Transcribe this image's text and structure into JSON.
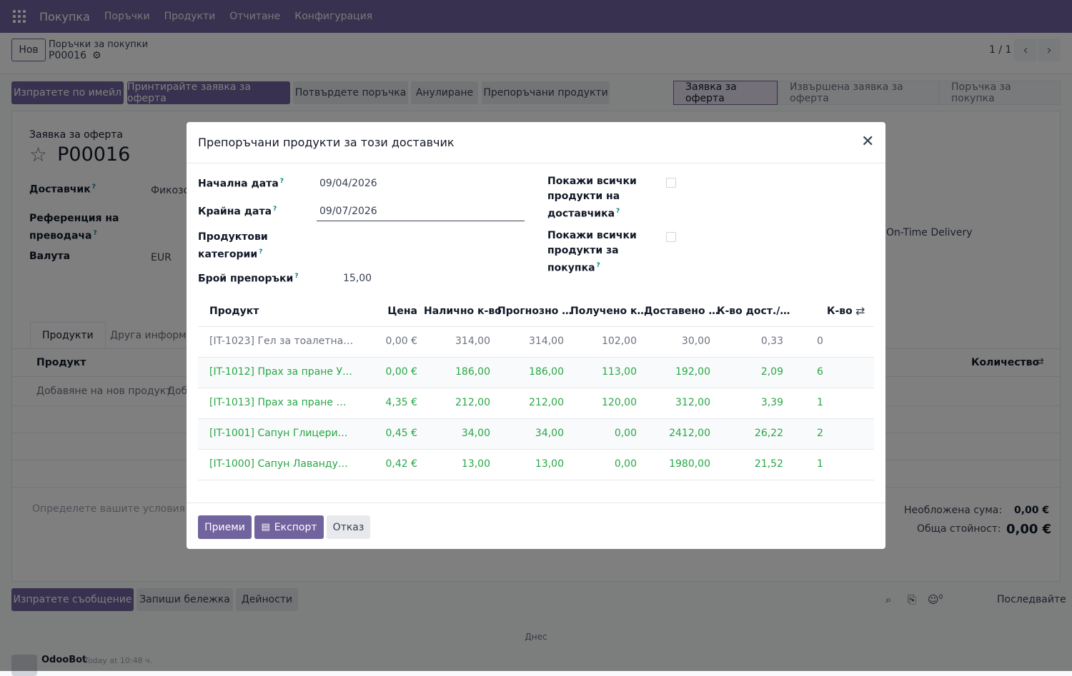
{
  "topnav": {
    "app_name": "Покупка",
    "items": [
      "Поръчки",
      "Продукти",
      "Отчитане",
      "Конфигурация"
    ]
  },
  "control_panel": {
    "new_label": "Нов",
    "breadcrumb_parent": "Поръчки за покупки",
    "breadcrumb_current": "P00016",
    "pager": "1 / 1"
  },
  "actions": {
    "send_email": "Изпратете по имейл",
    "print_rfq": "Принтирайте заявка за оферта",
    "confirm_order": "Потвърдете поръчка",
    "cancel": "Анулиране",
    "recommended": "Препоръчани продукти"
  },
  "statusbar": [
    "Заявка за оферта",
    "Извършена заявка за оферта",
    "Поръчка за покупка"
  ],
  "form": {
    "doc_type": "Заявка за оферта",
    "doc_number": "P00016",
    "vendor_label": "Доставчик",
    "vendor_value": "Фикозо",
    "vendor_ref_label_1": "Референция на",
    "vendor_ref_label_2": "преводача",
    "currency_label": "Валута",
    "currency_value": "EUR",
    "ontime_label": "On-Time Delivery",
    "tab_products": "Продукти",
    "tab_other": "Друга информац",
    "col_product": "Продукт",
    "col_quantity": "Количество",
    "add_product": "Добавяне на нов продукт",
    "add_other": "Доба",
    "terms_placeholder": "Определете вашите условия и пр",
    "untaxed_label": "Необложена сума:",
    "untaxed_value": "0,00 €",
    "total_label": "Обща стойност:",
    "total_value": "0,00 €"
  },
  "chatter": {
    "send_message": "Изпратете съобщение",
    "log_note": "Запиши бележка",
    "activities": "Дейности",
    "followers_count": "0",
    "follow": "Последвайте",
    "today": "Днес",
    "author": "OdooBot",
    "time": "Today at 10:48 ч."
  },
  "dialog": {
    "title": "Препоръчани продукти за този доставчик",
    "start_date_label": "Начална дата",
    "start_date_value": "09/04/2026",
    "end_date_label": "Крайна дата",
    "end_date_value": "09/07/2026",
    "categories_label_1": "Продуктови",
    "categories_label_2": "категории",
    "count_label": "Брой препоръки",
    "count_value": "15,00",
    "show_all_vendor_1": "Покажи всички",
    "show_all_vendor_2": "продукти на",
    "show_all_vendor_3": "доставчика",
    "show_all_purchase_1": "Покажи всички",
    "show_all_purchase_2": "продукти за",
    "show_all_purchase_3": "покупка",
    "columns": {
      "product": "Продукт",
      "price": "Цена",
      "onhand": "Налично к-во",
      "forecast": "Прогнозно …",
      "received": "Получено к…",
      "delivered": "Доставено …",
      "qty_per_day": "К-во дост./…",
      "qty": "К-во"
    },
    "rows": [
      {
        "product": "[IT-1023] Гел за тоалетна…",
        "price": "0,00 €",
        "onhand": "314,00",
        "forecast": "314,00",
        "received": "102,00",
        "delivered": "30,00",
        "per_day": "0,33",
        "qty": "0"
      },
      {
        "product": "[IT-1012] Прах за пране У…",
        "price": "0,00 €",
        "onhand": "186,00",
        "forecast": "186,00",
        "received": "113,00",
        "delivered": "192,00",
        "per_day": "2,09",
        "qty": "6"
      },
      {
        "product": "[IT-1013] Прах за пране …",
        "price": "4,35 €",
        "onhand": "212,00",
        "forecast": "212,00",
        "received": "120,00",
        "delivered": "312,00",
        "per_day": "3,39",
        "qty": "1"
      },
      {
        "product": "[IT-1001] Сапун Глицери…",
        "price": "0,45 €",
        "onhand": "34,00",
        "forecast": "34,00",
        "received": "0,00",
        "delivered": "2412,00",
        "per_day": "26,22",
        "qty": "2"
      },
      {
        "product": "[IT-1000] Сапун Лаванду…",
        "price": "0,42 €",
        "onhand": "13,00",
        "forecast": "13,00",
        "received": "0,00",
        "delivered": "1980,00",
        "per_day": "21,52",
        "qty": "1"
      }
    ],
    "accept": "Приеми",
    "export": "Експорт",
    "discard": "Отказ"
  },
  "colors": {
    "brand": "#71639e",
    "success_text": "#28a745"
  }
}
